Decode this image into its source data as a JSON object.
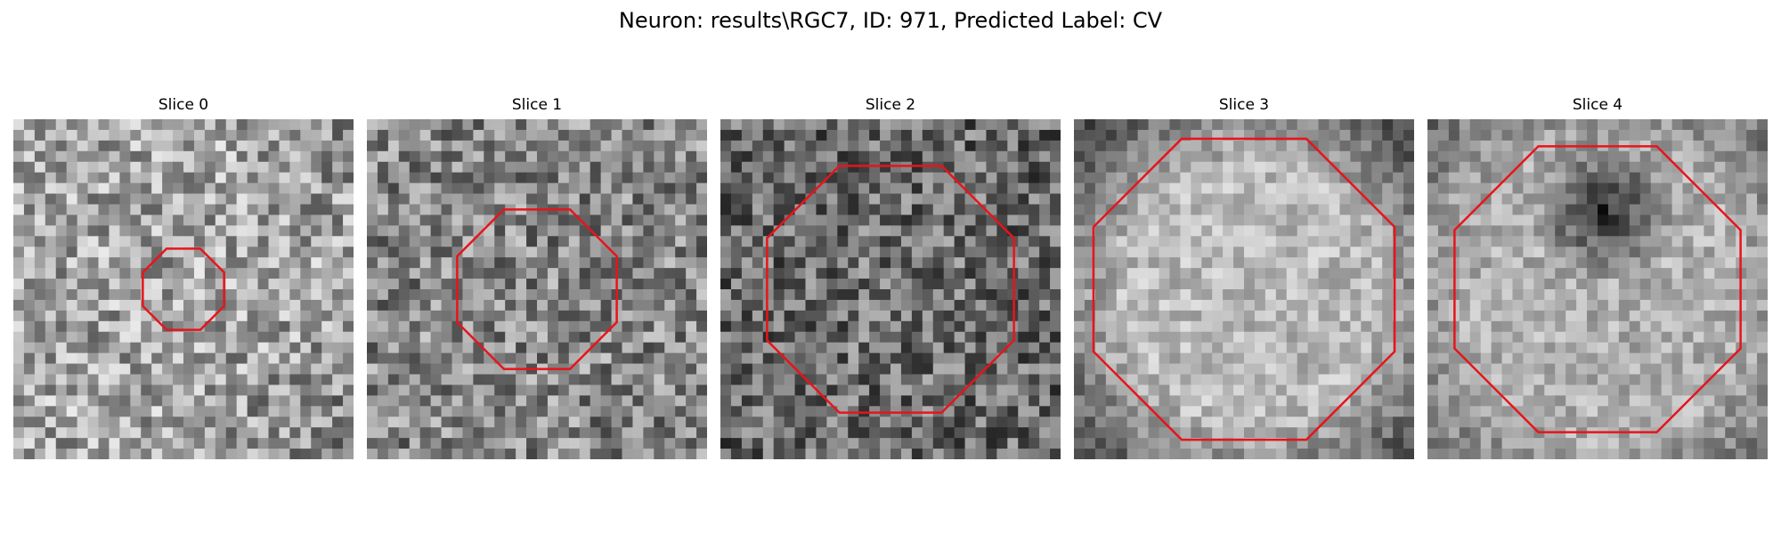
{
  "figure": {
    "title": "Neuron: results\\RGC7, ID: 971, Predicted Label: CV"
  },
  "panels": [
    {
      "title": "Slice 0",
      "contour_scale": 0.27,
      "texture": "light-bottom-right-dark",
      "seed": 11
    },
    {
      "title": "Slice 1",
      "contour_scale": 0.53,
      "texture": "noise",
      "seed": 23
    },
    {
      "title": "Slice 2",
      "contour_scale": 0.82,
      "texture": "noise-dark",
      "seed": 37
    },
    {
      "title": "Slice 3",
      "contour_scale": 1.0,
      "texture": "light-center",
      "seed": 41
    },
    {
      "title": "Slice 4",
      "contour_scale": 0.95,
      "texture": "dark-top-center",
      "seed": 53
    }
  ],
  "colors": {
    "contour": "#e8141b",
    "background": "#ffffff"
  }
}
